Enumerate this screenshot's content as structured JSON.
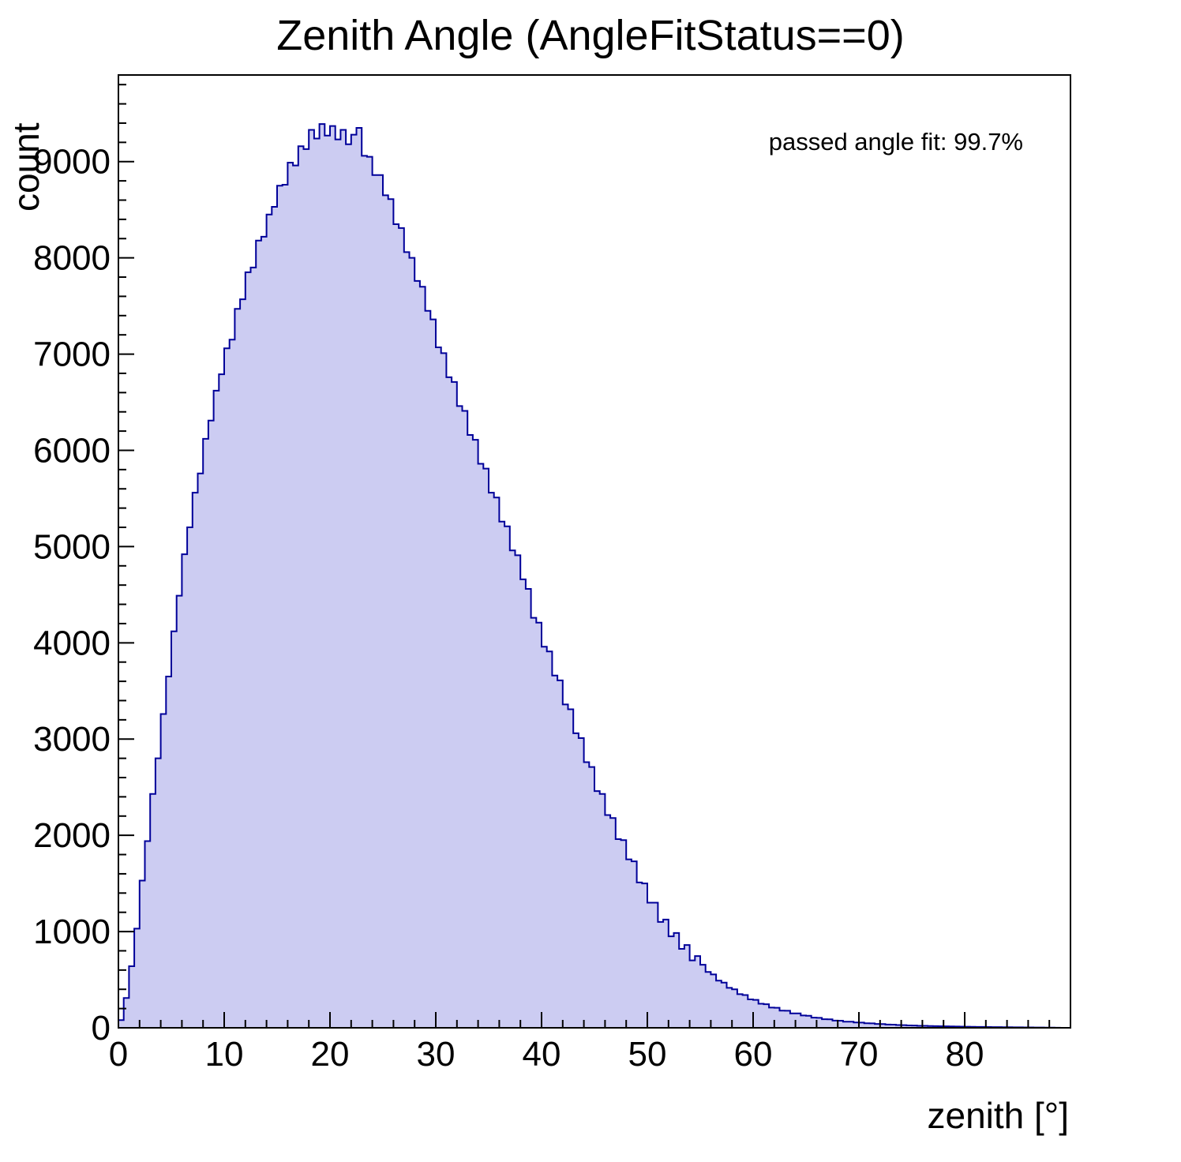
{
  "title": "Zenith Angle (AngleFitStatus==0)",
  "annotation": "passed angle fit: 99.7%",
  "chart_data": {
    "type": "bar",
    "subtype": "histogram",
    "title": "Zenith Angle (AngleFitStatus==0)",
    "xlabel": "zenith [°]",
    "ylabel": "count",
    "xlim": [
      0,
      90
    ],
    "ylim": [
      0,
      9900
    ],
    "x_ticks": [
      0,
      10,
      20,
      30,
      40,
      50,
      60,
      70,
      80
    ],
    "y_ticks": [
      0,
      1000,
      2000,
      3000,
      4000,
      5000,
      6000,
      7000,
      8000,
      9000
    ],
    "x_minor_step": 2,
    "y_minor_step": 200,
    "grid": false,
    "legend_position": "none",
    "fill_color": "#ccccf2",
    "line_color": "#000099",
    "bin_start": 0,
    "bin_width": 0.5,
    "values": [
      80,
      310,
      640,
      1030,
      1530,
      1940,
      2430,
      2800,
      3260,
      3650,
      4120,
      4490,
      4920,
      5200,
      5560,
      5760,
      6120,
      6310,
      6620,
      6790,
      7060,
      7150,
      7470,
      7570,
      7850,
      7900,
      8180,
      8220,
      8450,
      8530,
      8750,
      8760,
      8990,
      8960,
      9160,
      9130,
      9330,
      9240,
      9390,
      9270,
      9370,
      9230,
      9330,
      9180,
      9280,
      9350,
      9060,
      9050,
      8860,
      8860,
      8650,
      8610,
      8350,
      8310,
      8060,
      8000,
      7760,
      7700,
      7450,
      7360,
      7070,
      7010,
      6760,
      6710,
      6460,
      6410,
      6160,
      6110,
      5860,
      5810,
      5560,
      5510,
      5260,
      5210,
      4960,
      4910,
      4660,
      4560,
      4260,
      4210,
      3960,
      3910,
      3660,
      3610,
      3360,
      3310,
      3060,
      3010,
      2760,
      2710,
      2460,
      2430,
      2210,
      2180,
      1960,
      1950,
      1750,
      1730,
      1510,
      1500,
      1300,
      1300,
      1100,
      1125,
      950,
      985,
      820,
      860,
      700,
      745,
      655,
      580,
      555,
      490,
      470,
      415,
      400,
      350,
      340,
      295,
      290,
      250,
      245,
      210,
      208,
      178,
      177,
      150,
      150,
      128,
      125,
      106,
      104,
      89,
      88,
      75,
      74,
      64,
      64,
      55,
      54,
      47,
      46,
      40,
      39,
      34,
      33,
      29,
      28,
      25,
      24,
      21,
      20,
      18,
      17,
      16,
      15,
      14,
      13,
      12,
      11,
      10,
      9,
      9,
      8,
      7,
      7,
      6,
      6,
      5,
      5,
      4,
      4,
      3,
      3,
      2,
      2,
      1
    ]
  }
}
